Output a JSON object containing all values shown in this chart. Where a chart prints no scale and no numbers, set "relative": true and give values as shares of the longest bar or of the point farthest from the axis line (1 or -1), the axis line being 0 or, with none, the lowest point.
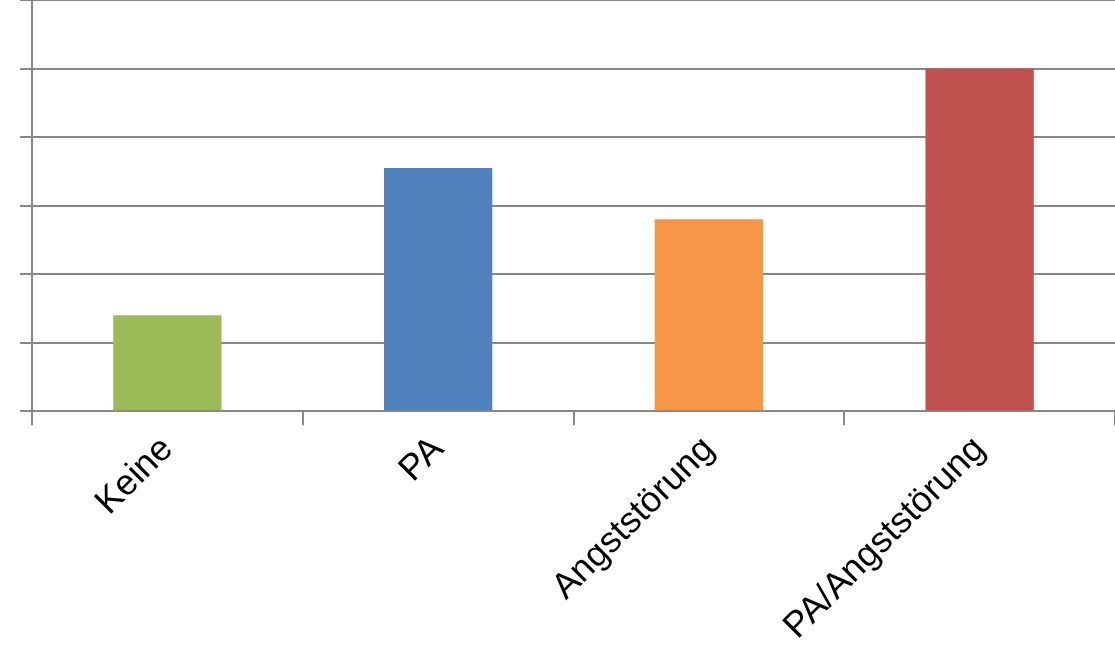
{
  "chart_data": {
    "type": "bar",
    "relative": true,
    "grid": "y",
    "categories": [
      "Keine",
      "PA",
      "Angststörung",
      "PA/Angststörung"
    ],
    "values": [
      0.28,
      0.71,
      0.56,
      1
    ],
    "colors": [
      "#9bbb59",
      "#4f81bd",
      "#f79646",
      "#c0504d"
    ]
  }
}
